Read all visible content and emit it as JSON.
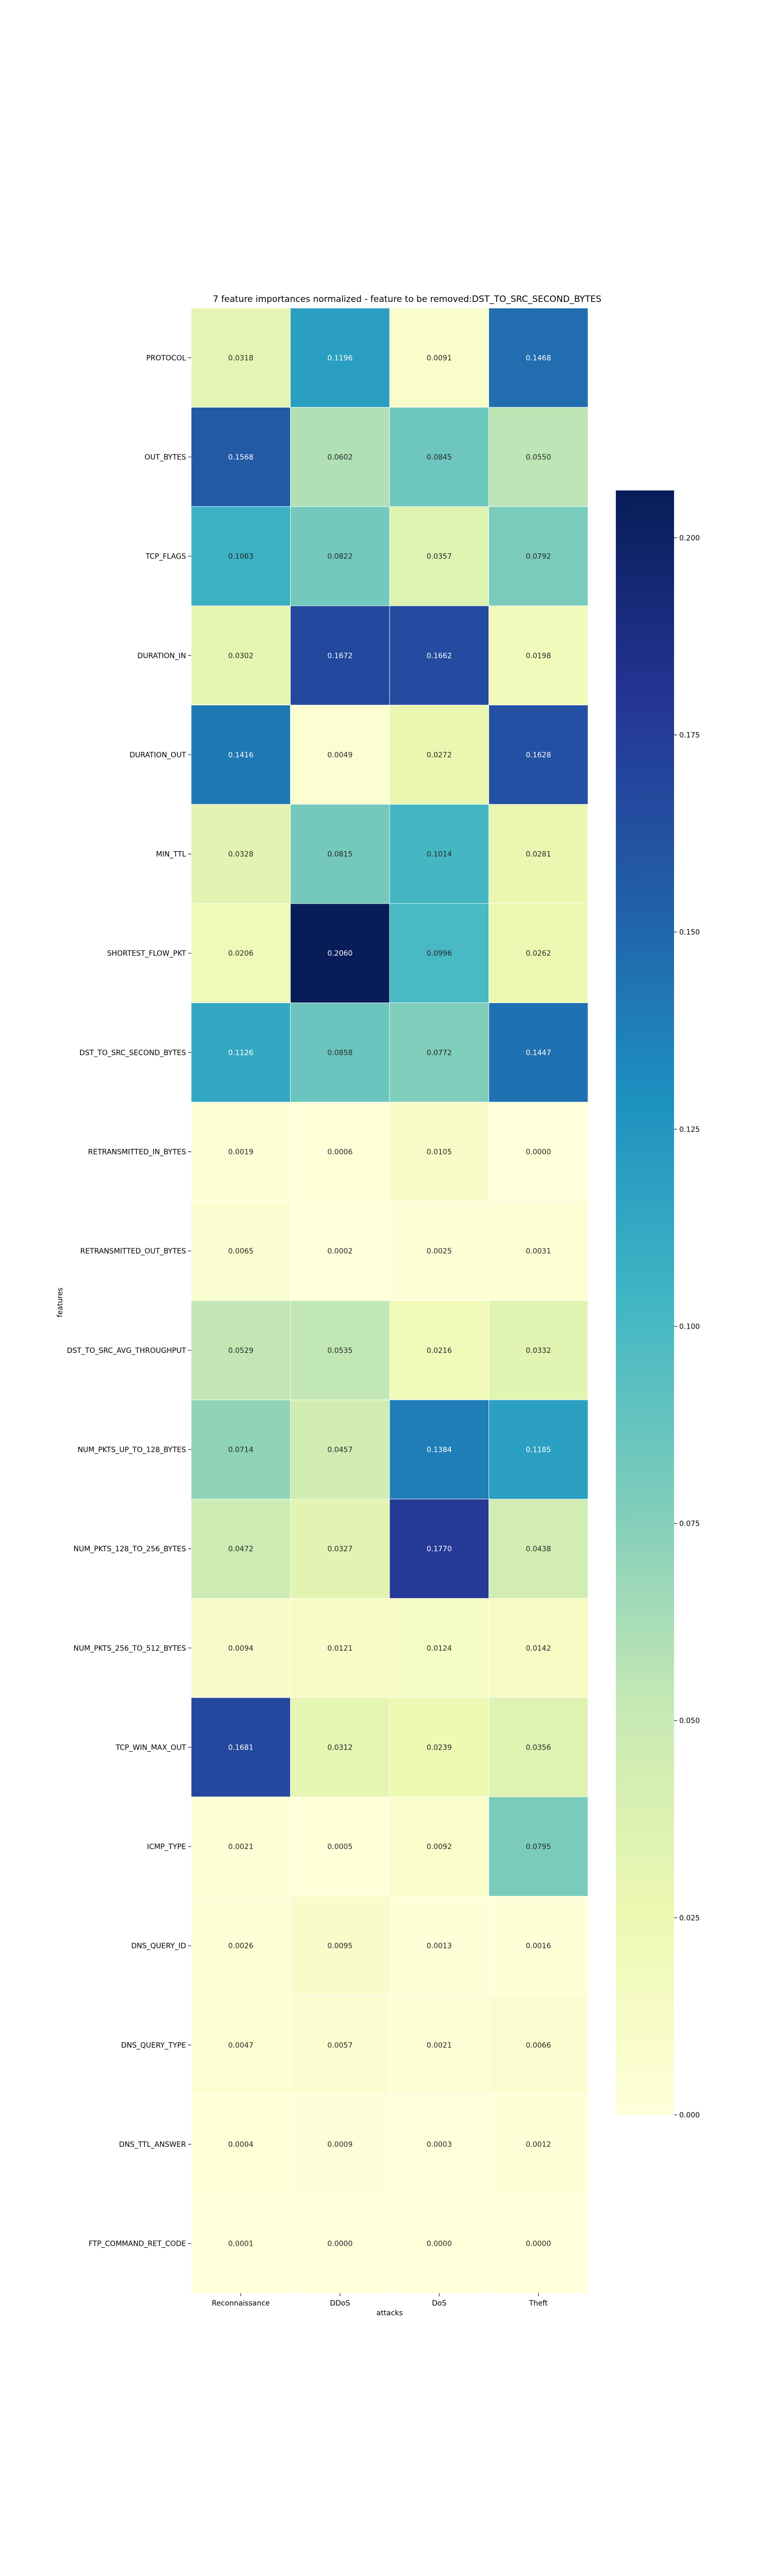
{
  "chart_data": {
    "type": "heatmap",
    "title": "7 feature importances normalized - feature to be removed:DST_TO_SRC_SECOND_BYTES",
    "xlabel": "attacks",
    "ylabel": "features",
    "colormap": "YlGnBu",
    "x_categories": [
      "Reconnaissance",
      "DDoS",
      "DoS",
      "Theft"
    ],
    "y_categories": [
      "PROTOCOL",
      "OUT_BYTES",
      "TCP_FLAGS",
      "DURATION_IN",
      "DURATION_OUT",
      "MIN_TTL",
      "SHORTEST_FLOW_PKT",
      "DST_TO_SRC_SECOND_BYTES",
      "RETRANSMITTED_IN_BYTES",
      "RETRANSMITTED_OUT_BYTES",
      "DST_TO_SRC_AVG_THROUGHPUT",
      "NUM_PKTS_UP_TO_128_BYTES",
      "NUM_PKTS_128_TO_256_BYTES",
      "NUM_PKTS_256_TO_512_BYTES",
      "TCP_WIN_MAX_OUT",
      "ICMP_TYPE",
      "DNS_QUERY_ID",
      "DNS_QUERY_TYPE",
      "DNS_TTL_ANSWER",
      "FTP_COMMAND_RET_CODE"
    ],
    "values": [
      [
        "0.0318",
        "0.1196",
        "0.0091",
        "0.1468"
      ],
      [
        "0.1568",
        "0.0602",
        "0.0845",
        "0.0550"
      ],
      [
        "0.1063",
        "0.0822",
        "0.0357",
        "0.0792"
      ],
      [
        "0.0302",
        "0.1672",
        "0.1662",
        "0.0198"
      ],
      [
        "0.1416",
        "0.0049",
        "0.0272",
        "0.1628"
      ],
      [
        "0.0328",
        "0.0815",
        "0.1014",
        "0.0281"
      ],
      [
        "0.0206",
        "0.2060",
        "0.0996",
        "0.0262"
      ],
      [
        "0.1126",
        "0.0858",
        "0.0772",
        "0.1447"
      ],
      [
        "0.0019",
        "0.0006",
        "0.0105",
        "0.0000"
      ],
      [
        "0.0065",
        "0.0002",
        "0.0025",
        "0.0031"
      ],
      [
        "0.0529",
        "0.0535",
        "0.0216",
        "0.0332"
      ],
      [
        "0.0714",
        "0.0457",
        "0.1384",
        "0.1185"
      ],
      [
        "0.0472",
        "0.0327",
        "0.1770",
        "0.0438"
      ],
      [
        "0.0094",
        "0.0121",
        "0.0124",
        "0.0142"
      ],
      [
        "0.1681",
        "0.0312",
        "0.0239",
        "0.0356"
      ],
      [
        "0.0021",
        "0.0005",
        "0.0092",
        "0.0795"
      ],
      [
        "0.0026",
        "0.0095",
        "0.0013",
        "0.0016"
      ],
      [
        "0.0047",
        "0.0057",
        "0.0021",
        "0.0066"
      ],
      [
        "0.0004",
        "0.0009",
        "0.0003",
        "0.0012"
      ],
      [
        "0.0001",
        "0.0000",
        "0.0000",
        "0.0000"
      ]
    ],
    "colorbar": {
      "vmin": 0.0,
      "vmax": 0.206,
      "ticks": [
        "0.000",
        "0.025",
        "0.050",
        "0.075",
        "0.100",
        "0.125",
        "0.150",
        "0.175",
        "0.200"
      ]
    }
  }
}
